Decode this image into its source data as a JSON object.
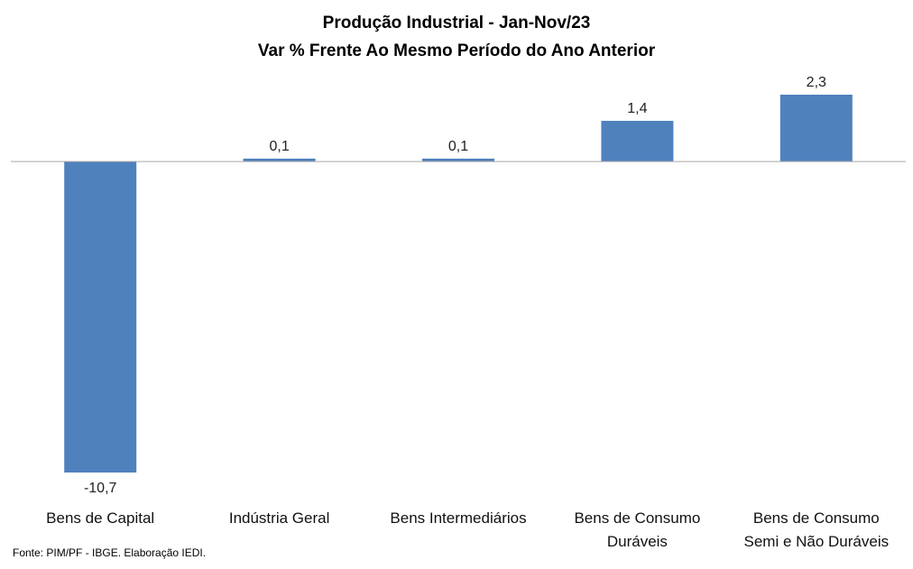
{
  "chart_data": {
    "type": "bar",
    "title": "Produção Industrial - Jan-Nov/23",
    "subtitle": "Var % Frente Ao Mesmo Período do Ano Anterior",
    "categories": [
      [
        "Bens de Capital"
      ],
      [
        "Indústria Geral"
      ],
      [
        "Bens Intermediários"
      ],
      [
        "Bens de Consumo",
        "Duráveis"
      ],
      [
        "Bens de Consumo",
        "Semi e Não Duráveis"
      ]
    ],
    "values": [
      -10.7,
      0.1,
      0.1,
      1.4,
      2.3
    ],
    "data_labels": [
      "-10,7",
      "0,1",
      "0,1",
      "1,4",
      "2,3"
    ],
    "ylim": [
      -10.7,
      2.3
    ],
    "grid": false,
    "legend": "none",
    "bar_color": "#4F81BD",
    "axis_color": "#A6A6A6"
  },
  "source": "Fonte: PIM/PF - IBGE. Elaboração IEDI."
}
